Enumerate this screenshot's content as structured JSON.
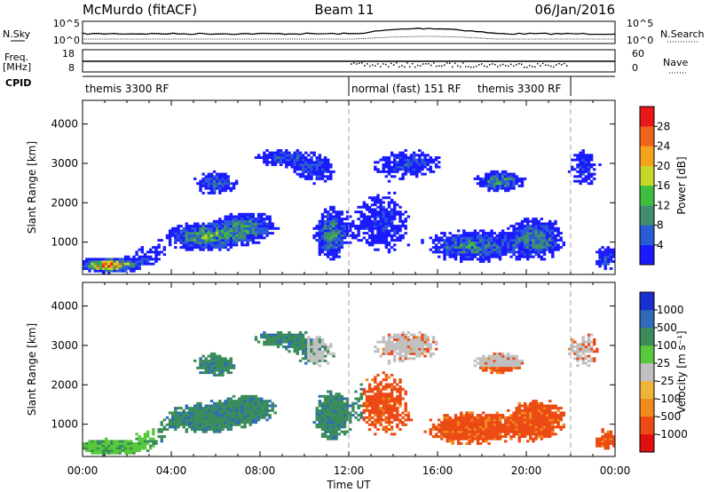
{
  "header": {
    "station": "McMurdo (fitACF)",
    "beam": "Beam 11",
    "date": "06/Jan/2016"
  },
  "strip_labels": {
    "nsky": "N.Sky",
    "nsearch": "N.Search",
    "freq": "Freq.",
    "freq_unit": "[MHz]",
    "nave": "Nave",
    "cpid": "CPID",
    "nsky_ticks": [
      "10^5",
      "10^0"
    ],
    "freq_ticks": [
      "18",
      "8"
    ],
    "nave_ticks": [
      "60",
      "0"
    ]
  },
  "cpid_segments": [
    {
      "label": "themis 3300 RF",
      "start_hour": 0.0,
      "end_hour": 12.0
    },
    {
      "label": "normal (fast) 151 RF",
      "start_hour": 12.0,
      "end_hour": 22.0
    },
    {
      "label": "themis 3300 RF",
      "start_hour": 22.0,
      "end_hour": 24.0
    }
  ],
  "chart_data": [
    {
      "type": "heatmap",
      "name": "power",
      "ylabel": "Slant Range [km]",
      "xlabel": "",
      "x_range_hours": [
        0,
        24
      ],
      "ylim": [
        180,
        4600
      ],
      "y_ticks": [
        "1000",
        "2000",
        "3000",
        "4000"
      ],
      "colorbar": {
        "label": "Power [dB]",
        "ticks": [
          "4",
          "8",
          "12",
          "16",
          "20",
          "24",
          "28"
        ],
        "range": [
          0,
          32
        ],
        "colors": [
          "#1a1aff",
          "#2a5bd6",
          "#3f8f6f",
          "#3dbf3d",
          "#c8d62a",
          "#f5a21e",
          "#f0641a",
          "#e81818"
        ]
      }
    },
    {
      "type": "heatmap",
      "name": "velocity",
      "ylabel": "Slant Range [km]",
      "xlabel": "Time UT",
      "x_range_hours": [
        0,
        24
      ],
      "ylim": [
        180,
        4600
      ],
      "y_ticks": [
        "1000",
        "2000",
        "3000",
        "4000"
      ],
      "x_ticks": [
        "00:00",
        "04:00",
        "08:00",
        "12:00",
        "16:00",
        "20:00",
        "00:00"
      ],
      "colorbar": {
        "label": "Velocity [m s⁻¹]",
        "ticks": [
          "1000",
          "500",
          "100",
          "25",
          "-25",
          "-100",
          "-500",
          "-1000"
        ],
        "colors": [
          "#1a2fd0",
          "#2e6bb8",
          "#3a8c5a",
          "#57c93a",
          "#c0c0c0",
          "#f0b43a",
          "#f08a1a",
          "#ec4a14",
          "#e01010"
        ]
      }
    }
  ],
  "colors": {
    "ground_scatter": "#c0c0c0",
    "divider": "#a0a0a0"
  }
}
